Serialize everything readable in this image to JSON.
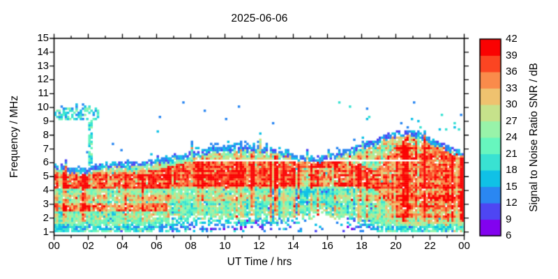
{
  "title": "2025-06-06",
  "axes": {
    "x": {
      "label": "UT Time / hrs",
      "range_hours": [
        0,
        24
      ],
      "major_tick_hours": [
        0,
        2,
        4,
        6,
        8,
        10,
        12,
        14,
        16,
        18,
        20,
        22,
        24
      ],
      "tick_labels": [
        "00",
        "02",
        "04",
        "06",
        "08",
        "10",
        "12",
        "14",
        "16",
        "18",
        "20",
        "22",
        "00"
      ],
      "minor_step_hours": 1
    },
    "y": {
      "label": "Frequency / MHz",
      "range_mhz": [
        0.75,
        15
      ],
      "ticks": [
        1,
        2,
        3,
        4,
        5,
        6,
        7,
        8,
        9,
        10,
        11,
        12,
        13,
        14,
        15
      ]
    }
  },
  "colorbar": {
    "label": "Signal to Noise Ratio SNR / dB",
    "range_db": [
      6,
      42
    ],
    "ticks": [
      6,
      9,
      12,
      15,
      18,
      21,
      24,
      27,
      30,
      33,
      36,
      39,
      42
    ],
    "band_step_db": 3,
    "band_colors_low_to_high": [
      "#8202EF",
      "#4E46F3",
      "#2A87F2",
      "#10C1E6",
      "#39E2D2",
      "#67F6BE",
      "#98F3A9",
      "#C6E28B",
      "#EFC26F",
      "#FA8B4B",
      "#FB4522",
      "#FA0202"
    ]
  },
  "chart_data": {
    "type": "heatmap",
    "title": "2025-06-06",
    "xlabel": "UT Time / hrs",
    "ylabel": "Frequency / MHz",
    "zlabel": "Signal to Noise Ratio SNR / dB",
    "x_range_hours": [
      0,
      24
    ],
    "y_range_mhz": [
      1.0,
      10.6
    ],
    "z_range_db": [
      6,
      42
    ],
    "grid": {
      "dt_hours": 0.125,
      "df_mhz": 0.15
    },
    "envelope_top_mhz_by_hour": [
      5.95,
      5.65,
      5.6,
      5.95,
      6.05,
      6.1,
      6.25,
      6.45,
      6.7,
      7.05,
      7.15,
      7.25,
      7.1,
      6.95,
      6.6,
      6.35,
      6.45,
      6.9,
      7.3,
      7.75,
      8.2,
      8.3,
      7.75,
      7.15,
      6.85
    ],
    "features": {
      "red_core_band": {
        "mhz_night": [
          4.1,
          5.35
        ],
        "mhz_day": [
          4.35,
          6.1
        ],
        "mhz_evening": [
          2.6,
          7.3
        ],
        "snr_db": 38
      },
      "night_secondary_red_band": {
        "hours": [
          0,
          6.6
        ],
        "mhz": [
          2.45,
          3.1
        ],
        "snr_db": 34.5
      },
      "blanking_white_line": {
        "mhz": 6.17,
        "hours": [
          8.3,
          21.4
        ]
      },
      "early_upper_band": {
        "hours": [
          0,
          2.6
        ],
        "mhz": [
          9.1,
          10.0
        ],
        "snr_db": [
          13,
          25
        ]
      },
      "vertical_trace": {
        "hour": 2.12,
        "mhz_span": [
          5.6,
          9.7
        ]
      },
      "evening_upper_scatter": {
        "hours": [
          16.4,
          24
        ],
        "mhz": [
          8.3,
          10.4
        ]
      },
      "midday_lowfreq_gap": {
        "hours": [
          12.8,
          17.8
        ],
        "peak_mhz": 2.2,
        "center_hour": 15.5
      },
      "afternoon_depression": {
        "hours": [
          14,
          16.6
        ],
        "mhz": [
          3.1,
          5.6
        ],
        "delta_db": -5.5
      },
      "day_window_hours": [
        5.3,
        19.2
      ],
      "evening_onset_hour": 18.8
    },
    "render_seed": 42
  }
}
